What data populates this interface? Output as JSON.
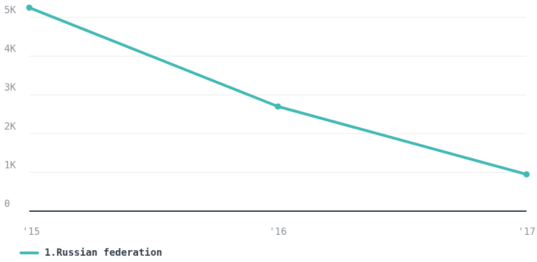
{
  "chart_data": {
    "type": "line",
    "title": "",
    "xlabel": "",
    "ylabel": "",
    "categories": [
      "'15",
      "'16",
      "'17"
    ],
    "y_ticks": [
      {
        "value": 0,
        "label": "0"
      },
      {
        "value": 1000,
        "label": "1K"
      },
      {
        "value": 2000,
        "label": "2K"
      },
      {
        "value": 3000,
        "label": "3K"
      },
      {
        "value": 4000,
        "label": "4K"
      },
      {
        "value": 5000,
        "label": "5K"
      }
    ],
    "ylim": [
      0,
      5250
    ],
    "grid": true,
    "legend_position": "bottom-left",
    "series": [
      {
        "name": "1.Russian federation",
        "values": [
          5250,
          2700,
          950
        ],
        "color": "#40b8b4"
      }
    ],
    "colors": {
      "grid": "#e9ecee",
      "baseline": "#2f3a45",
      "tick_text": "#8a9096"
    }
  }
}
